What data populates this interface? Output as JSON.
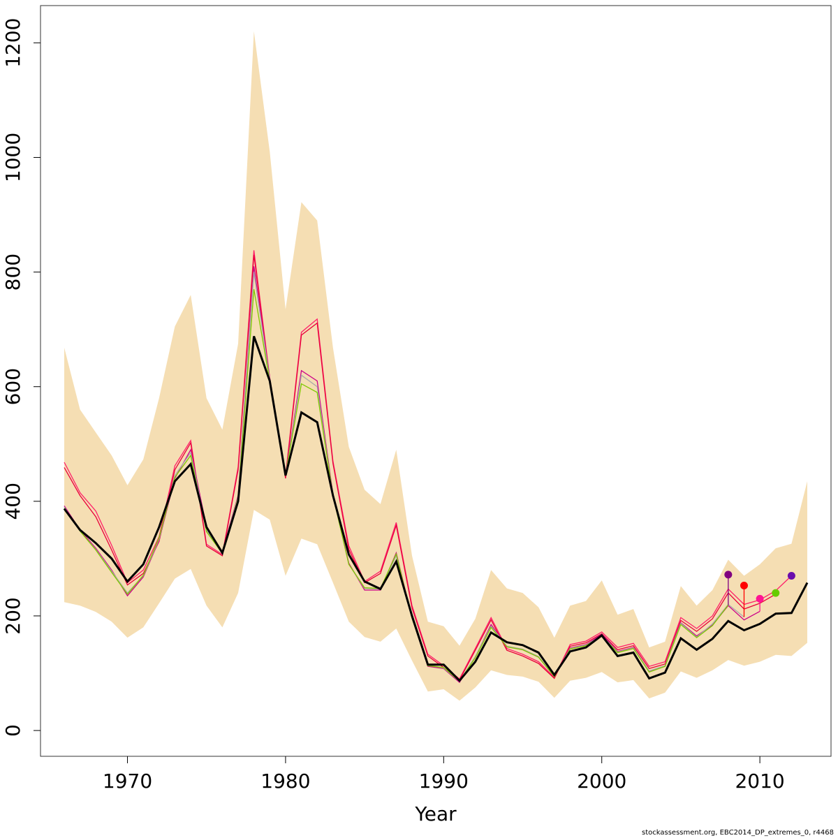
{
  "chart_data": {
    "type": "line",
    "title": "",
    "xlabel": "Year",
    "ylabel": "",
    "xlim": [
      1964.5,
      2014.5
    ],
    "ylim": [
      -45,
      1265
    ],
    "x_ticks": [
      1970,
      1980,
      1990,
      2000,
      2010
    ],
    "y_ticks": [
      0,
      200,
      400,
      600,
      800,
      1000,
      1200
    ],
    "grid": false,
    "legend": "none",
    "x": [
      1966,
      1967,
      1968,
      1969,
      1970,
      1971,
      1972,
      1973,
      1974,
      1975,
      1976,
      1977,
      1978,
      1979,
      1980,
      1981,
      1982,
      1983,
      1984,
      1985,
      1986,
      1987,
      1988,
      1989,
      1990,
      1991,
      1992,
      1993,
      1994,
      1995,
      1996,
      1997,
      1998,
      1999,
      2000,
      2001,
      2002,
      2003,
      2004,
      2005,
      2006,
      2007,
      2008,
      2009,
      2010,
      2011,
      2012,
      2013
    ],
    "band": {
      "color": "#f5deb3",
      "upper": [
        668,
        560,
        520,
        480,
        428,
        473,
        580,
        705,
        760,
        580,
        525,
        675,
        1220,
        1010,
        735,
        922,
        890,
        668,
        495,
        420,
        395,
        490,
        305,
        190,
        182,
        148,
        195,
        280,
        248,
        240,
        215,
        162,
        218,
        226,
        262,
        202,
        212,
        145,
        155,
        252,
        218,
        245,
        298,
        270,
        290,
        318,
        326,
        435
      ],
      "lower": [
        224,
        218,
        207,
        190,
        162,
        180,
        222,
        265,
        282,
        218,
        180,
        240,
        385,
        368,
        270,
        335,
        325,
        258,
        190,
        163,
        155,
        178,
        122,
        68,
        72,
        52,
        75,
        105,
        97,
        94,
        85,
        57,
        87,
        92,
        102,
        84,
        88,
        56,
        66,
        103,
        92,
        105,
        123,
        113,
        120,
        132,
        130,
        153
      ]
    },
    "base": {
      "color": "#000000",
      "values": [
        387,
        350,
        327,
        300,
        260,
        290,
        355,
        435,
        465,
        355,
        310,
        400,
        688,
        610,
        445,
        555,
        538,
        410,
        307,
        260,
        247,
        295,
        200,
        115,
        115,
        87,
        120,
        171,
        154,
        149,
        136,
        97,
        138,
        145,
        166,
        130,
        136,
        91,
        101,
        161,
        141,
        160,
        191,
        175,
        186,
        204,
        205,
        258
      ]
    },
    "series": [
      {
        "color": "#ff1f6a",
        "dot": {
          "x": 2012,
          "y": 270,
          "color": "#6a0dad"
        },
        "values": [
          468,
          415,
          383,
          323,
          258,
          280,
          338,
          462,
          506,
          325,
          307,
          460,
          838,
          615,
          445,
          695,
          718,
          470,
          322,
          260,
          278,
          363,
          218,
          133,
          113,
          90,
          143,
          197,
          143,
          133,
          120,
          93,
          150,
          156,
          172,
          145,
          152,
          112,
          120,
          197,
          178,
          200,
          247,
          220,
          228,
          244,
          270,
          null
        ]
      },
      {
        "color": "#e8003a",
        "dot": {
          "x": 2011,
          "y": 240,
          "color": "#66cc00"
        },
        "values": [
          459,
          410,
          373,
          315,
          254,
          274,
          330,
          455,
          502,
          322,
          305,
          455,
          830,
          612,
          440,
          690,
          711,
          466,
          316,
          258,
          274,
          358,
          214,
          130,
          110,
          88,
          140,
          193,
          140,
          130,
          117,
          91,
          147,
          153,
          169,
          141,
          148,
          108,
          116,
          192,
          173,
          195,
          240,
          212,
          222,
          238,
          null,
          null
        ]
      },
      {
        "color": "#cc0088",
        "dot": {
          "x": 2010,
          "y": 230,
          "color": "#ff1493"
        },
        "values": [
          392,
          350,
          318,
          280,
          235,
          268,
          332,
          440,
          490,
          355,
          312,
          410,
          810,
          615,
          445,
          628,
          610,
          412,
          292,
          245,
          245,
          310,
          196,
          112,
          108,
          84,
          128,
          185,
          146,
          141,
          128,
          94,
          144,
          150,
          168,
          138,
          145,
          103,
          112,
          188,
          165,
          184,
          218,
          193,
          208,
          null,
          null,
          null
        ]
      },
      {
        "color": "#aaaaaa",
        "dot": {
          "x": 2009,
          "y": 253,
          "color": "#ff0000"
        },
        "values": [
          390,
          348,
          316,
          278,
          240,
          270,
          334,
          445,
          485,
          350,
          310,
          408,
          800,
          612,
          445,
          620,
          600,
          410,
          290,
          248,
          247,
          305,
          195,
          114,
          109,
          86,
          129,
          182,
          147,
          142,
          129,
          95,
          143,
          149,
          166,
          137,
          144,
          104,
          113,
          187,
          163,
          186,
          220,
          198,
          null,
          null,
          null,
          null
        ]
      },
      {
        "color": "#7fc800",
        "dot": {
          "x": 2008,
          "y": 272,
          "color": "#800080"
        },
        "values": [
          388,
          348,
          315,
          276,
          238,
          271,
          336,
          442,
          480,
          347,
          309,
          406,
          770,
          610,
          446,
          605,
          590,
          410,
          290,
          249,
          248,
          308,
          196,
          113,
          110,
          86,
          127,
          180,
          146,
          141,
          128,
          94,
          142,
          148,
          165,
          136,
          143,
          102,
          112,
          185,
          162,
          183,
          219,
          null,
          null,
          null,
          null,
          null
        ]
      }
    ]
  },
  "footnote": "stockassessment.org, EBC2014_DP_extremes_0, r4468"
}
